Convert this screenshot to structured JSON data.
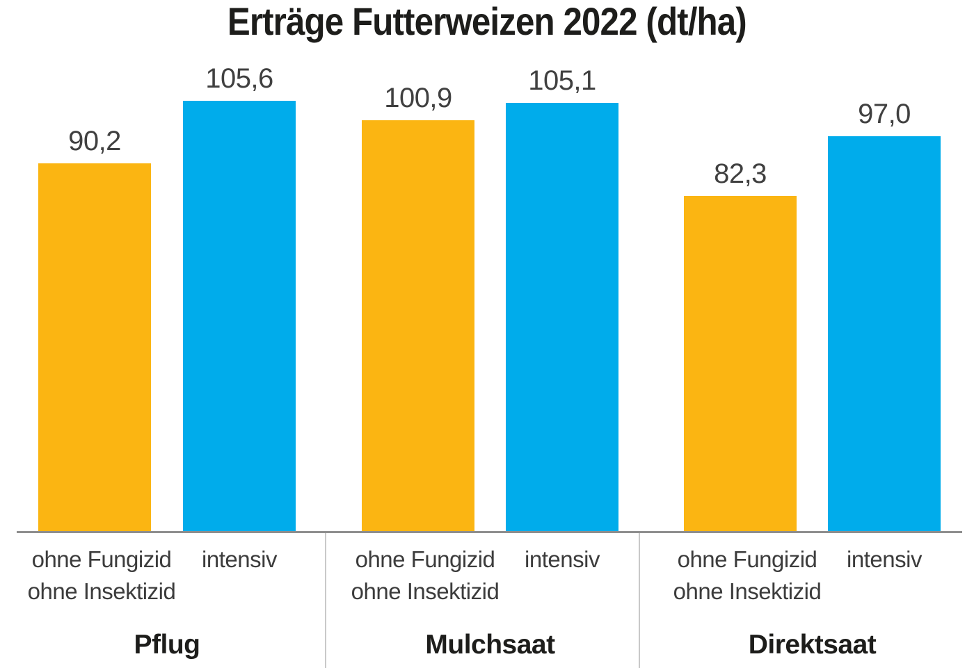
{
  "page": {
    "background": "#ffffff"
  },
  "chart_data": {
    "type": "bar",
    "title": "Erträge Futterweizen 2022 (dt/ha)",
    "unit": "dt/ha",
    "categories": [
      "Pflug",
      "Mulchsaat",
      "Direktsaat"
    ],
    "series": [
      {
        "name": "ohne Fungizid ohne Insektizid",
        "label_lines": [
          "ohne Fungizid",
          "ohne Insektizid"
        ],
        "color": "#FBB512",
        "values": [
          90.2,
          100.9,
          82.3
        ],
        "value_labels": [
          "90,2",
          "100,9",
          "82,3"
        ]
      },
      {
        "name": "intensiv",
        "label_lines": [
          "intensiv"
        ],
        "color": "#00ACEB",
        "values": [
          105.6,
          105.1,
          97.0
        ],
        "value_labels": [
          "105,6",
          "105,1",
          "97,0"
        ]
      }
    ],
    "ylim": [
      0,
      110
    ],
    "grid": false,
    "y_axis_shown": false,
    "legend_position": "labels-below-bars",
    "colors": {
      "title": "#1d1d1b",
      "value_label": "#404040",
      "series_label": "#3c3c3c",
      "category_label": "#1d1d1b",
      "baseline": "#8e8e8e",
      "divider": "#c9c9c9"
    }
  }
}
